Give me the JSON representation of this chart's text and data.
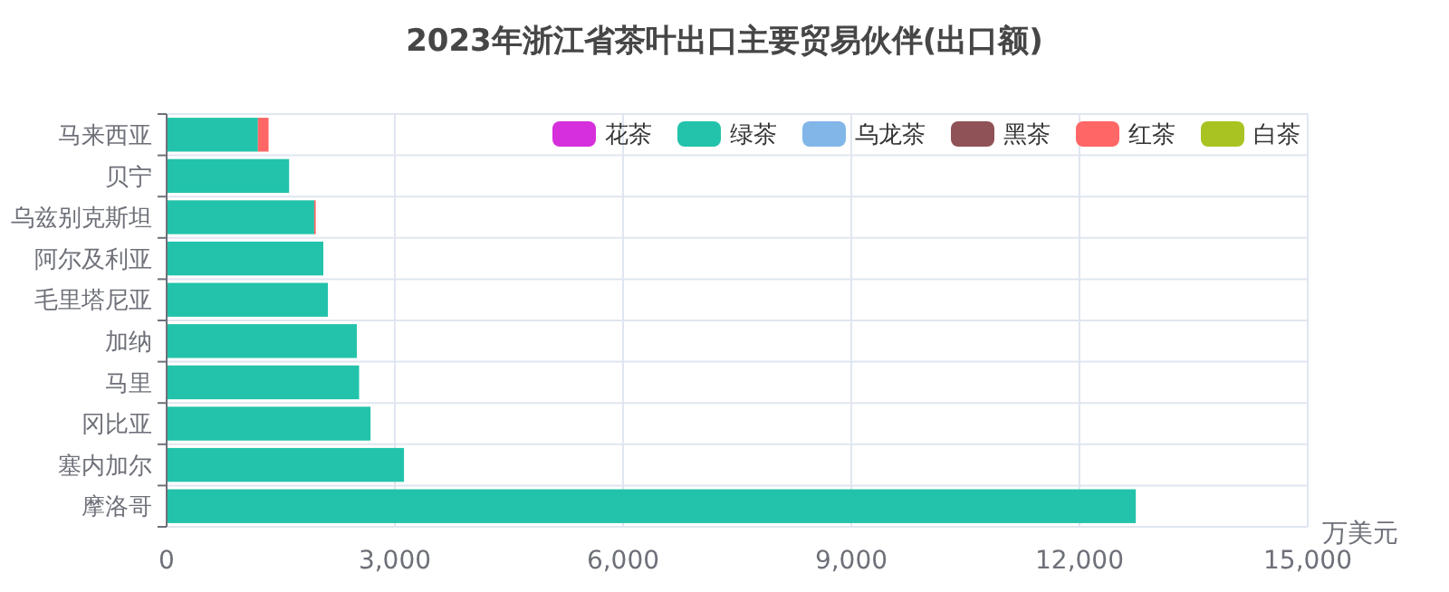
{
  "chart_data": {
    "type": "bar",
    "orientation": "horizontal",
    "stacked": true,
    "title": "2023年浙江省茶叶出口主要贸易伙伴(出口额)",
    "xlabel": "万美元",
    "categories": [
      "马来西亚",
      "贝宁",
      "乌兹别克斯坦",
      "阿尔及利亚",
      "毛里塔尼亚",
      "加纳",
      "马里",
      "冈比亚",
      "塞内加尔",
      "摩洛哥"
    ],
    "series": [
      {
        "name": "花茶",
        "color": "#d62fdc",
        "values": [
          0,
          0,
          0,
          0,
          0,
          0,
          0,
          0,
          0,
          0
        ]
      },
      {
        "name": "绿茶",
        "color": "#22c3aa",
        "values": [
          1200,
          1610,
          1940,
          2060,
          2120,
          2500,
          2530,
          2680,
          3120,
          12740
        ]
      },
      {
        "name": "乌龙茶",
        "color": "#82b6e9",
        "values": [
          0,
          0,
          0,
          0,
          0,
          0,
          0,
          0,
          0,
          0
        ]
      },
      {
        "name": "黑茶",
        "color": "#8f5256",
        "values": [
          0,
          0,
          0,
          0,
          0,
          0,
          0,
          0,
          0,
          0
        ]
      },
      {
        "name": "红茶",
        "color": "#ff6666",
        "values": [
          140,
          0,
          20,
          0,
          0,
          0,
          0,
          0,
          0,
          0
        ]
      },
      {
        "name": "白茶",
        "color": "#a9c321",
        "values": [
          0,
          0,
          0,
          0,
          0,
          0,
          0,
          0,
          0,
          0
        ]
      }
    ],
    "xlim": [
      0,
      15000
    ],
    "xticks": [
      {
        "value": 0,
        "label": "0"
      },
      {
        "value": 3000,
        "label": "3,000"
      },
      {
        "value": 6000,
        "label": "6,000"
      },
      {
        "value": 9000,
        "label": "9,000"
      },
      {
        "value": 12000,
        "label": "12,000"
      },
      {
        "value": 15000,
        "label": "15,000"
      }
    ],
    "grid": true,
    "legend": "top right"
  }
}
